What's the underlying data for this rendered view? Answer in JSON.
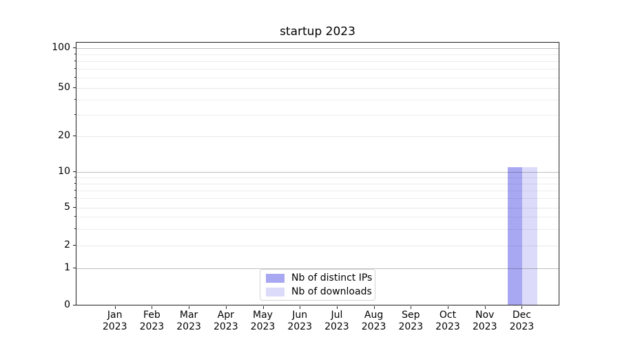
{
  "title": "startup 2023",
  "chart_data": {
    "type": "bar",
    "title": "startup 2023",
    "xlabel": "",
    "ylabel": "",
    "yscale": "symlog",
    "ylim": [
      0,
      110
    ],
    "grid": true,
    "legend_position": "lower center",
    "categories": [
      {
        "month": "Jan",
        "year": "2023"
      },
      {
        "month": "Feb",
        "year": "2023"
      },
      {
        "month": "Mar",
        "year": "2023"
      },
      {
        "month": "Apr",
        "year": "2023"
      },
      {
        "month": "May",
        "year": "2023"
      },
      {
        "month": "Jun",
        "year": "2023"
      },
      {
        "month": "Jul",
        "year": "2023"
      },
      {
        "month": "Aug",
        "year": "2023"
      },
      {
        "month": "Sep",
        "year": "2023"
      },
      {
        "month": "Oct",
        "year": "2023"
      },
      {
        "month": "Nov",
        "year": "2023"
      },
      {
        "month": "Dec",
        "year": "2023"
      }
    ],
    "series": [
      {
        "name": "Nb of distinct IPs",
        "color": "#a8a8f2",
        "values": [
          0,
          0,
          0,
          0,
          0,
          0,
          0,
          0,
          0,
          0,
          0,
          11
        ]
      },
      {
        "name": "Nb of downloads",
        "color": "#dcdcfa",
        "values": [
          0,
          0,
          0,
          0,
          0,
          0,
          0,
          0,
          0,
          0,
          0,
          11
        ]
      }
    ],
    "yticks": [
      0,
      1,
      2,
      5,
      10,
      20,
      50,
      100
    ],
    "yticks_minor": [
      3,
      4,
      6,
      7,
      8,
      9,
      30,
      40,
      60,
      70,
      80,
      90
    ],
    "yticks_emphasized": [
      1,
      10,
      100
    ]
  }
}
